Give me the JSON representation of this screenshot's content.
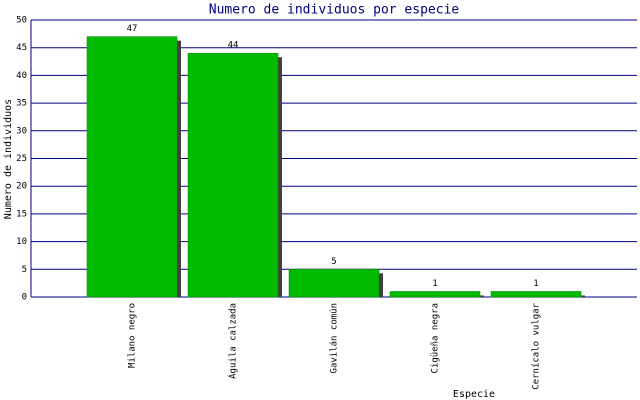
{
  "chart_data": {
    "type": "bar",
    "title": "Numero de individuos por especie",
    "x_label": "Especie",
    "y_label": "Numero de individuos",
    "categories": [
      "Milano negro",
      "Águila calzada",
      "Gavilán común",
      "Cigüeña negra",
      "Cernícalo vulgar"
    ],
    "values": [
      47,
      44,
      5,
      1,
      1
    ],
    "color": "#00bb00",
    "ylim": [
      0,
      50
    ],
    "yticks": [
      0,
      5,
      10,
      15,
      20,
      25,
      30,
      35,
      40,
      45,
      50
    ],
    "grid": true
  }
}
